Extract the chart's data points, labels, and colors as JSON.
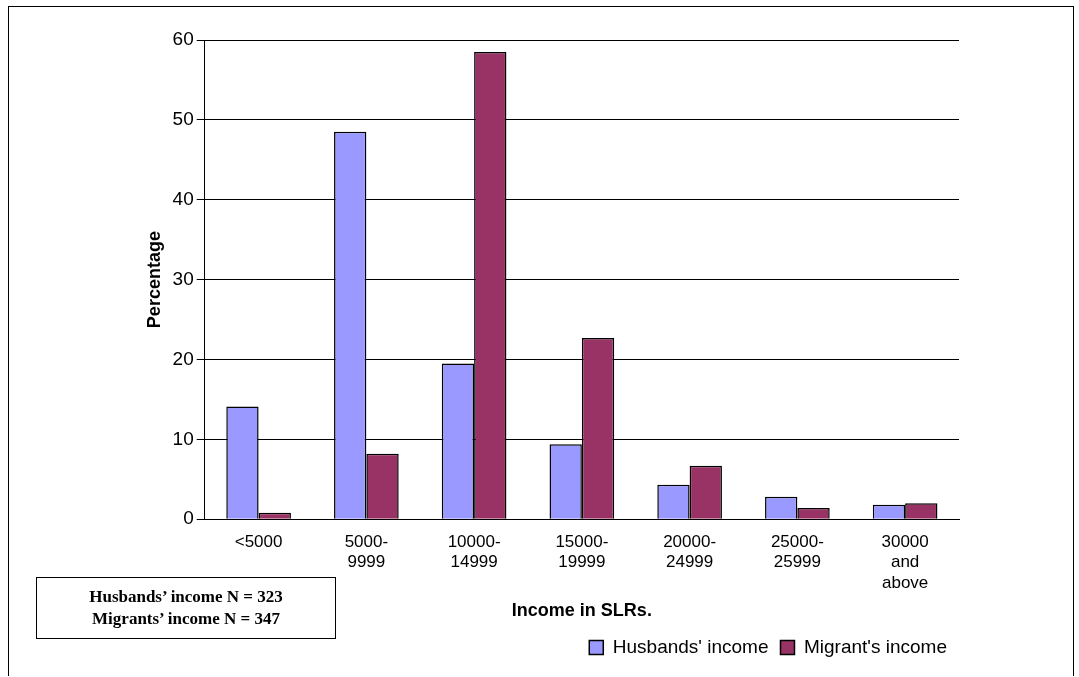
{
  "chart_data": {
    "type": "bar",
    "xlabel": "Income in SLRs.",
    "ylabel": "Percentage",
    "categories": [
      "<5000",
      [
        "5000-",
        "9999"
      ],
      [
        "10000-",
        "14999"
      ],
      [
        "15000-",
        "19999"
      ],
      [
        "20000-",
        "24999"
      ],
      [
        "25000-",
        "25999"
      ],
      [
        "30000",
        "and",
        "above"
      ]
    ],
    "series": [
      {
        "name": "Husbands' income",
        "color": "#9999ff",
        "values": [
          14.1,
          48.5,
          19.5,
          9.4,
          4.3,
          2.8,
          1.8
        ]
      },
      {
        "name": "Migrant's income",
        "color": "#993366",
        "values": [
          0.8,
          8.2,
          58.5,
          22.7,
          6.7,
          1.4,
          2.0
        ]
      }
    ],
    "ylim": [
      0,
      60
    ],
    "yticks": [
      0,
      10,
      20,
      30,
      40,
      50,
      60
    ],
    "grid": "y",
    "legend": "bottom right",
    "annotations": [
      "Husbands’ income N = 323",
      "Migrants’ income N = 347"
    ]
  }
}
